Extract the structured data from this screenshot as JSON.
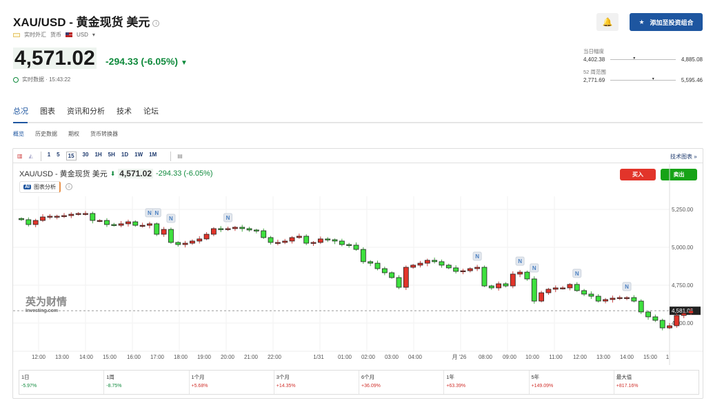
{
  "header": {
    "title": "XAU/USD - 黄金现货 美元",
    "market": "实时外汇",
    "category": "货币",
    "currency": "USD",
    "price": "4,571.02",
    "change": "-294.33 (-6.05%)",
    "realtime_label": "实时数据 · 15:43:22",
    "add_portfolio": "添加至投资组合"
  },
  "ranges": {
    "day_label": "当日幅度",
    "day_low": "4,402.38",
    "day_high": "4,885.08",
    "day_pos": 0.35,
    "week52_label": "52 周范围",
    "week52_low": "2,771.69",
    "week52_high": "5,595.46",
    "week52_pos": 0.64
  },
  "tabs": [
    "总况",
    "图表",
    "资讯和分析",
    "技术",
    "论坛"
  ],
  "subtabs": [
    "概览",
    "历史数据",
    "期权",
    "货币转换器"
  ],
  "toolbar": {
    "intervals": [
      "1",
      "5",
      "15",
      "30",
      "1H",
      "5H",
      "1D",
      "1W",
      "1M"
    ],
    "selected": "15",
    "tech_chart": "技术图表 »"
  },
  "chart_header": {
    "name": "XAU/USD - 黄金现货 美元",
    "price": "4,571.02",
    "change": "-294.33 (-6.05%)",
    "ai_label": "图表分析",
    "ai_badge": "AI",
    "buy": "买入",
    "sell": "卖出"
  },
  "watermark": {
    "cn": "英为财情",
    "en": "Investing.com"
  },
  "colors": {
    "up": "#e2342a",
    "down": "#3ee03e",
    "accent": "#1e56a0"
  },
  "chart_data": {
    "type": "candlestick",
    "first_open": 5190,
    "closes": [
      5182,
      5150,
      5177,
      5200,
      5205,
      5205,
      5209,
      5218,
      5223,
      5223,
      5177,
      5177,
      5150,
      5145,
      5155,
      5168,
      5145,
      5145,
      5155,
      5086,
      5118,
      5032,
      5018,
      5027,
      5041,
      5055,
      5086,
      5123,
      5118,
      5123,
      5132,
      5123,
      5114,
      5109,
      5064,
      5032,
      5032,
      5041,
      5064,
      5073,
      5027,
      5032,
      5055,
      5050,
      5041,
      5018,
      5014,
      4986,
      4905,
      4895,
      4859,
      4832,
      4800,
      4736,
      4868,
      4882,
      4895,
      4914,
      4905,
      4882,
      4864,
      4841,
      4845,
      4859,
      4868,
      4745,
      4732,
      4759,
      4745,
      4823,
      4836,
      4791,
      4645,
      4700,
      4723,
      4732,
      4732,
      4755,
      4714,
      4691,
      4677,
      4645,
      4655,
      4664,
      4668,
      4668,
      4645,
      4573,
      4541,
      4518,
      4468,
      4482,
      4550,
      4564,
      4581.06
    ],
    "news_marker_indices": [
      18,
      19,
      21,
      29,
      64,
      70,
      72,
      78,
      85
    ],
    "news_label": "N",
    "y_ticks": [
      "5,250.00",
      "5,000.00",
      "4,750.00",
      "4,500.00"
    ],
    "y_tick_values": [
      5250,
      5000,
      4750,
      4500
    ],
    "current_price_label": "4,581.06",
    "x_ticks": [
      "12:00",
      "13:00",
      "14:00",
      "15:00",
      "16:00",
      "17:00",
      "18:00",
      "19:00",
      "20:00",
      "21:00",
      "22:00",
      "1/31",
      "01:00",
      "02:00",
      "03:00",
      "04:00",
      "月 '26",
      "08:00",
      "09:00",
      "10:00",
      "11:00",
      "12:00",
      "13:00",
      "14:00",
      "15:00",
      "1"
    ]
  },
  "performance": [
    {
      "label": "1日",
      "value": "-5.97%",
      "dir": "neg"
    },
    {
      "label": "1周",
      "value": "-8.75%",
      "dir": "neg"
    },
    {
      "label": "1个月",
      "value": "+5.68%",
      "dir": "pos"
    },
    {
      "label": "3个月",
      "value": "+14.35%",
      "dir": "pos"
    },
    {
      "label": "6个月",
      "value": "+36.09%",
      "dir": "pos"
    },
    {
      "label": "1年",
      "value": "+63.39%",
      "dir": "pos"
    },
    {
      "label": "5年",
      "value": "+149.09%",
      "dir": "pos"
    },
    {
      "label": "最大值",
      "value": "+817.16%",
      "dir": "pos"
    }
  ]
}
